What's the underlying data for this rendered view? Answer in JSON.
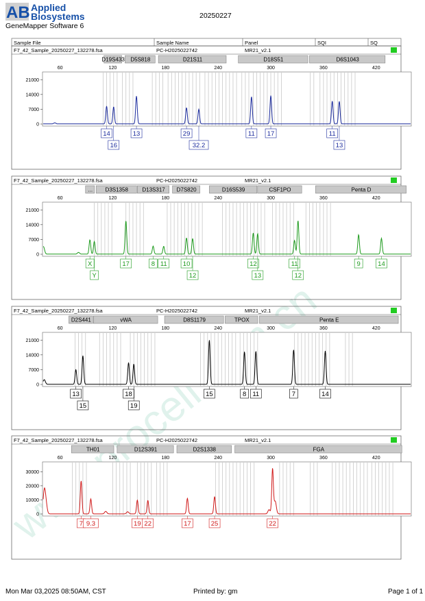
{
  "header": {
    "logo_mark": "AB",
    "brand_line1": "Applied",
    "brand_line2": "Biosystems",
    "software": "GeneMapper Software 6",
    "date": "20250227"
  },
  "columns": [
    "Sample File",
    "Sample Name",
    "Panel",
    "SQI",
    "SQ"
  ],
  "footer": {
    "left": "Mon Mar 03,2025 08:50AM, CST",
    "center": "Printed by: gm",
    "right": "Page 1 of 1"
  },
  "watermark": "www.procell.com.cn",
  "colors": {
    "blue": "#1a2a9c",
    "green": "#1c9a1c",
    "black": "#000000",
    "red": "#d01818",
    "sq_ok": "#22cc22",
    "bin": "#c8c8c8"
  },
  "chart_data": [
    {
      "type": "line",
      "dye": "blue",
      "sample_file": "F7_42_Sample_20250227_132278.fsa",
      "sample_name": "PC-H2025022742",
      "panel": "MR21_v2.1",
      "xlim": [
        40,
        460
      ],
      "x_ticks": [
        60,
        120,
        180,
        240,
        300,
        360,
        420
      ],
      "ylim": [
        0,
        24000
      ],
      "y_ticks": [
        0,
        7000,
        14000,
        21000
      ],
      "markers": [
        {
          "name": "D19S433",
          "range": [
            110,
            131
          ]
        },
        {
          "name": "D5S818",
          "range": [
            134,
            169
          ]
        },
        {
          "name": "D21S11",
          "range": [
            172,
            250
          ]
        },
        {
          "name": "D18S51",
          "range": [
            263,
            343
          ]
        },
        {
          "name": "D6S1043",
          "range": [
            344,
            431
          ]
        }
      ],
      "bins": [
        [
          109,
          125
        ],
        [
          131,
          146
        ],
        [
          165,
          177
        ],
        [
          183,
          222
        ],
        [
          225,
          262
        ],
        [
          267,
          275
        ],
        [
          280,
          315
        ],
        [
          345,
          352
        ],
        [
          356,
          398
        ]
      ],
      "peaks": [
        {
          "x": 113,
          "y": 8400,
          "label": "14",
          "row": 1
        },
        {
          "x": 121,
          "y": 8100,
          "label": "16",
          "row": 2
        },
        {
          "x": 147,
          "y": 13200,
          "label": "13",
          "row": 1
        },
        {
          "x": 204,
          "y": 7700,
          "label": "29",
          "row": 1
        },
        {
          "x": 218,
          "y": 6900,
          "label": "32.2",
          "row": 2
        },
        {
          "x": 278,
          "y": 12900,
          "label": "11",
          "row": 1
        },
        {
          "x": 300,
          "y": 13400,
          "label": "17",
          "row": 1
        },
        {
          "x": 370,
          "y": 10800,
          "label": "11",
          "row": 1
        },
        {
          "x": 378,
          "y": 10700,
          "label": "13",
          "row": 2
        }
      ],
      "minor": [
        {
          "x": 54,
          "y": 500
        }
      ]
    },
    {
      "type": "line",
      "dye": "green",
      "sample_file": "F7_42_Sample_20250227_132278.fsa",
      "sample_name": "PC-H2025022742",
      "panel": "MR21_v2.1",
      "xlim": [
        40,
        460
      ],
      "x_ticks": [
        60,
        120,
        180,
        240,
        300,
        360,
        420
      ],
      "ylim": [
        0,
        24000
      ],
      "y_ticks": [
        0,
        7000,
        14000,
        21000
      ],
      "markers": [
        {
          "name": "...",
          "range": [
            89,
            100
          ]
        },
        {
          "name": "D3S1358",
          "range": [
            101,
            148
          ]
        },
        {
          "name": "D13S317",
          "range": [
            148,
            185
          ]
        },
        {
          "name": "D7S820",
          "range": [
            188,
            220
          ]
        },
        {
          "name": "D16S539",
          "range": [
            230,
            285
          ]
        },
        {
          "name": "CSF1PO",
          "range": [
            285,
            336
          ]
        },
        {
          "name": "Penta D",
          "range": [
            351,
            455
          ]
        }
      ],
      "bins": [
        [
          99,
          121
        ],
        [
          135,
          155
        ],
        [
          182,
          222
        ],
        [
          245,
          294
        ],
        [
          302,
          326
        ],
        [
          340,
          370
        ]
      ],
      "peaks": [
        {
          "x": 94,
          "y": 6800,
          "label": "X",
          "row": 1
        },
        {
          "x": 99,
          "y": 6000,
          "label": "Y",
          "row": 2
        },
        {
          "x": 135,
          "y": 15800,
          "label": "17",
          "row": 1
        },
        {
          "x": 166,
          "y": 3800,
          "label": "8",
          "row": 1
        },
        {
          "x": 178,
          "y": 3700,
          "label": "11",
          "row": 1
        },
        {
          "x": 204,
          "y": 7700,
          "label": "10",
          "row": 1
        },
        {
          "x": 211,
          "y": 7400,
          "label": "12",
          "row": 2
        },
        {
          "x": 280,
          "y": 10000,
          "label": "12",
          "row": 1
        },
        {
          "x": 285,
          "y": 9700,
          "label": "13",
          "row": 2
        },
        {
          "x": 327,
          "y": 6500,
          "label": "11",
          "row": 1
        },
        {
          "x": 331,
          "y": 15900,
          "label": "12",
          "row": 2
        },
        {
          "x": 400,
          "y": 9200,
          "label": "9",
          "row": 1
        },
        {
          "x": 426,
          "y": 7500,
          "label": "14",
          "row": 1
        }
      ],
      "minor": [
        {
          "x": 41,
          "y": 3600
        },
        {
          "x": 81,
          "y": 800
        }
      ]
    },
    {
      "type": "line",
      "dye": "black",
      "sample_file": "F7_42_Sample_20250227_132278.fsa",
      "sample_name": "PC-H2025022742",
      "panel": "MR21_v2.1",
      "xlim": [
        40,
        460
      ],
      "x_ticks": [
        60,
        120,
        180,
        240,
        300,
        360,
        420
      ],
      "ylim": [
        0,
        24000
      ],
      "y_ticks": [
        0,
        7000,
        14000,
        21000
      ],
      "markers": [
        {
          "name": "D2S441",
          "range": [
            70,
            98
          ]
        },
        {
          "name": "vWA",
          "range": [
            98,
            172
          ]
        },
        {
          "name": "D8S1179",
          "range": [
            179,
            247
          ]
        },
        {
          "name": "TPOX",
          "range": [
            248,
            286
          ]
        },
        {
          "name": "Penta E",
          "range": [
            287,
            446
          ]
        }
      ],
      "bins": [
        [
          77,
          89
        ],
        [
          105,
          131
        ],
        [
          140,
          168
        ],
        [
          220,
          263
        ],
        [
          265,
          285
        ],
        [
          327,
          367
        ],
        [
          385,
          395
        ]
      ],
      "peaks": [
        {
          "x": 78,
          "y": 7000,
          "label": "13",
          "row": 1
        },
        {
          "x": 86,
          "y": 13600,
          "label": "15",
          "row": 2
        },
        {
          "x": 138,
          "y": 10300,
          "label": "18",
          "row": 1
        },
        {
          "x": 144,
          "y": 9600,
          "label": "19",
          "row": 2
        },
        {
          "x": 230,
          "y": 21000,
          "label": "15",
          "row": 1
        },
        {
          "x": 270,
          "y": 15500,
          "label": "8",
          "row": 1
        },
        {
          "x": 283,
          "y": 15700,
          "label": "11",
          "row": 1
        },
        {
          "x": 326,
          "y": 16400,
          "label": "7",
          "row": 1
        },
        {
          "x": 362,
          "y": 15800,
          "label": "14",
          "row": 1
        }
      ],
      "minor": [
        {
          "x": 42,
          "y": 2200
        }
      ]
    },
    {
      "type": "line",
      "dye": "red",
      "sample_file": "F7_42_Sample_20250227_132278.fsa",
      "sample_name": "PC-H2025022742",
      "panel": "MR21_v2.1",
      "xlim": [
        40,
        460
      ],
      "x_ticks": [
        60,
        120,
        180,
        240,
        300,
        360,
        420
      ],
      "ylim": [
        0,
        36000
      ],
      "y_ticks": [
        0,
        10000,
        20000,
        30000
      ],
      "markers": [
        {
          "name": "TH01",
          "range": [
            73,
            122
          ]
        },
        {
          "name": "D12S391",
          "range": [
            125,
            190
          ]
        },
        {
          "name": "D2S1338",
          "range": [
            193,
            256
          ]
        },
        {
          "name": "FGA",
          "range": [
            259,
            450
          ]
        }
      ],
      "bins": [
        [
          74,
          91
        ],
        [
          120,
          142
        ],
        [
          148,
          166
        ],
        [
          170,
          185
        ],
        [
          237,
          283
        ],
        [
          310,
          328
        ],
        [
          345,
          355
        ],
        [
          370,
          410
        ],
        [
          415,
          440
        ]
      ],
      "peaks": [
        {
          "x": 84,
          "y": 23500,
          "label": "7",
          "row": 1
        },
        {
          "x": 95,
          "y": 10600,
          "label": "9.3",
          "row": 1
        },
        {
          "x": 148,
          "y": 9800,
          "label": "19",
          "row": 1
        },
        {
          "x": 160,
          "y": 9600,
          "label": "22",
          "row": 1
        },
        {
          "x": 205,
          "y": 11100,
          "label": "17",
          "row": 1
        },
        {
          "x": 236,
          "y": 12300,
          "label": "25",
          "row": 1
        },
        {
          "x": 302,
          "y": 32000,
          "label": "22",
          "row": 1
        }
      ],
      "minor": [
        {
          "x": 42,
          "y": 16000
        },
        {
          "x": 44,
          "y": 7000
        },
        {
          "x": 305,
          "y": 9000
        },
        {
          "x": 298,
          "y": 3000
        },
        {
          "x": 112,
          "y": 1800
        },
        {
          "x": 137,
          "y": 1500
        }
      ]
    }
  ]
}
